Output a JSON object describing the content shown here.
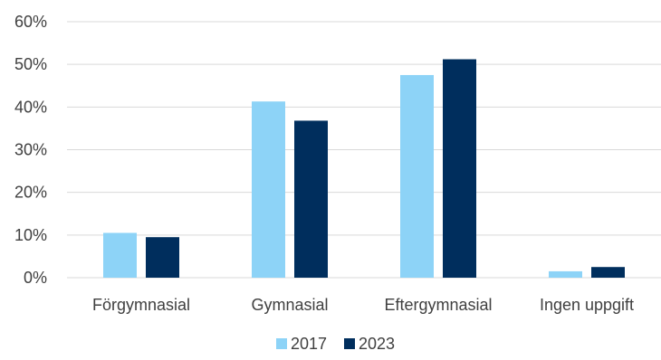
{
  "chart_data": {
    "type": "bar",
    "categories": [
      "Förgymnasial",
      "Gymnasial",
      "Eftergymnasial",
      "Ingen uppgift"
    ],
    "series": [
      {
        "name": "2017",
        "values": [
          10.5,
          41.3,
          47.5,
          1.5
        ],
        "color": "#8dd3f7"
      },
      {
        "name": "2023",
        "values": [
          9.5,
          36.8,
          51.2,
          2.5
        ],
        "color": "#002e5d"
      }
    ],
    "ylim": [
      0,
      60
    ],
    "yticks": [
      0,
      10,
      20,
      30,
      40,
      50,
      60
    ],
    "ytick_labels": [
      "0%",
      "10%",
      "20%",
      "30%",
      "40%",
      "50%",
      "60%"
    ],
    "grid": true,
    "legend_position": "bottom-center",
    "title": "",
    "xlabel": "",
    "ylabel": ""
  }
}
